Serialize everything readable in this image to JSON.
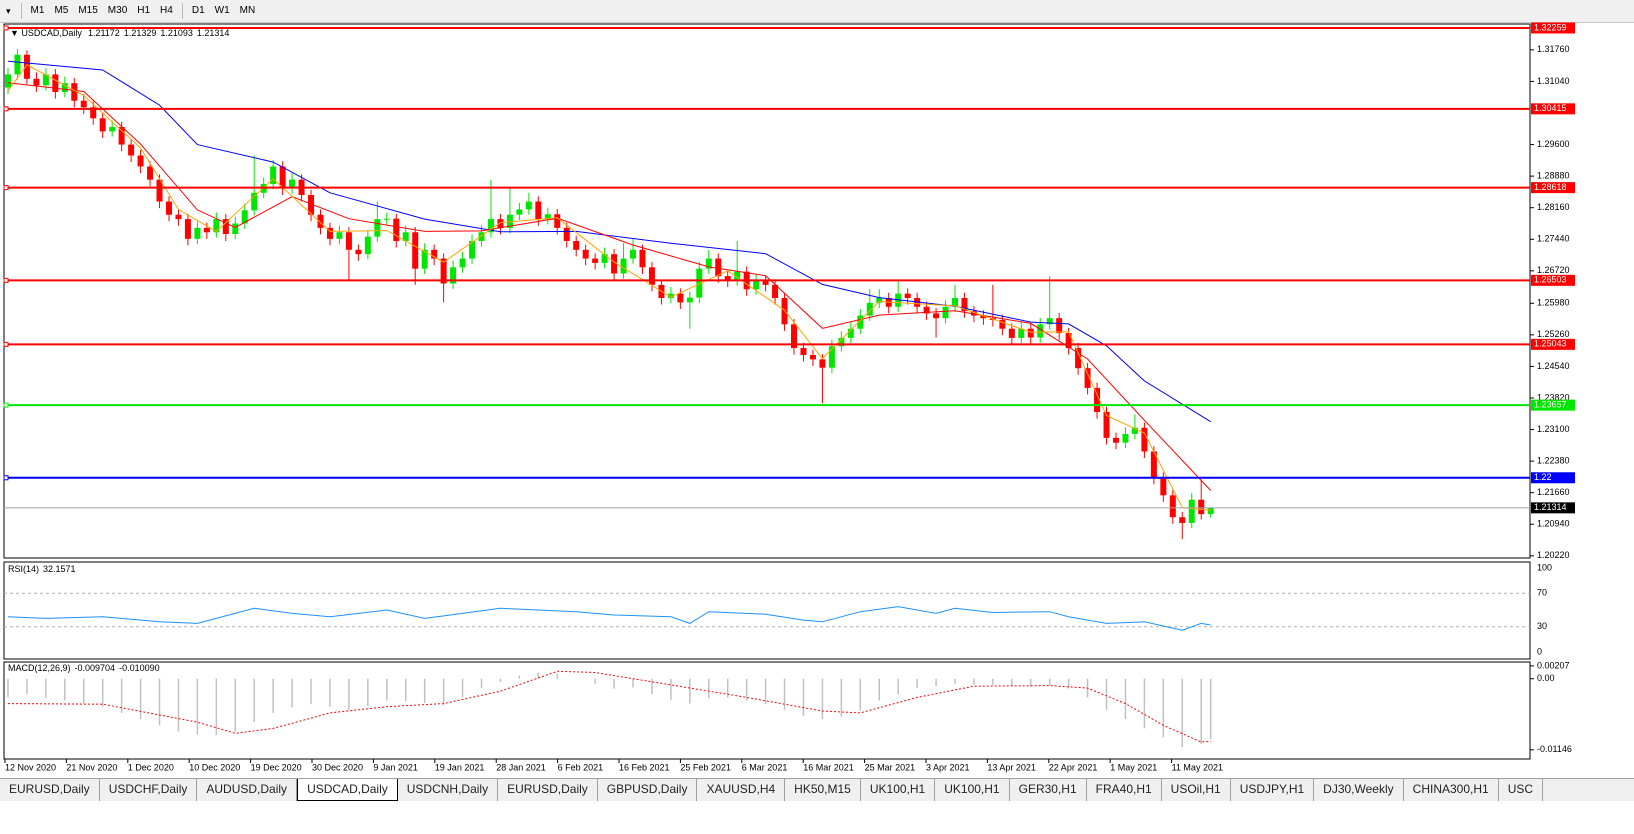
{
  "toolbar": {
    "timeframes": [
      "M1",
      "M5",
      "M15",
      "M30",
      "H1",
      "H4",
      "D1",
      "W1",
      "MN"
    ]
  },
  "chart_data": {
    "type": "candlestick",
    "title": "USDCAD,Daily",
    "bull_color": "#00e600",
    "bear_color": "#ff0000",
    "ylim": [
      1.2017,
      1.3235
    ],
    "yticks": [
      {
        "value": 1.3176,
        "label": "1.31760"
      },
      {
        "value": 1.3104,
        "label": "1.31040"
      },
      {
        "value": 1.296,
        "label": "1.29600"
      },
      {
        "value": 1.2888,
        "label": "1.28880"
      },
      {
        "value": 1.2816,
        "label": "1.28160"
      },
      {
        "value": 1.2744,
        "label": "1.27440"
      },
      {
        "value": 1.2672,
        "label": "1.26720"
      },
      {
        "value": 1.2598,
        "label": "1.25980"
      },
      {
        "value": 1.2526,
        "label": "1.25260"
      },
      {
        "value": 1.2454,
        "label": "1.24540"
      },
      {
        "value": 1.2382,
        "label": "1.23820"
      },
      {
        "value": 1.231,
        "label": "1.23100"
      },
      {
        "value": 1.2238,
        "label": "1.22380"
      },
      {
        "value": 1.2166,
        "label": "1.21660"
      },
      {
        "value": 1.2094,
        "label": "1.20940"
      },
      {
        "value": 1.2022,
        "label": "1.20220"
      }
    ],
    "x_labels": [
      "12 Nov 2020",
      "21 Nov 2020",
      "1 Dec 2020",
      "10 Dec 2020",
      "19 Dec 2020",
      "30 Dec 2020",
      "9 Jan 2021",
      "19 Jan 2021",
      "28 Jan 2021",
      "6 Feb 2021",
      "16 Feb 2021",
      "25 Feb 2021",
      "6 Mar 2021",
      "16 Mar 2021",
      "25 Mar 2021",
      "3 Apr 2021",
      "13 Apr 2021",
      "22 Apr 2021",
      "1 May 2021",
      "11 May 2021"
    ],
    "levels": [
      {
        "value": 1.32259,
        "color": "#ff0000"
      },
      {
        "value": 1.30415,
        "color": "#ff0000"
      },
      {
        "value": 1.28618,
        "color": "#ff0000"
      },
      {
        "value": 1.26503,
        "color": "#ff0000"
      },
      {
        "value": 1.25043,
        "color": "#ff0000"
      },
      {
        "value": 1.23657,
        "color": "#00e600"
      },
      {
        "value": 1.22,
        "color": "#0000ff"
      }
    ],
    "candles": [
      [
        1.309,
        1.3135,
        1.3075,
        1.312
      ],
      [
        1.312,
        1.3178,
        1.3108,
        1.3165
      ],
      [
        1.3165,
        1.3175,
        1.3098,
        1.311
      ],
      [
        1.311,
        1.3125,
        1.308,
        1.3095
      ],
      [
        1.3095,
        1.3135,
        1.3083,
        1.312
      ],
      [
        1.312,
        1.3132,
        1.3065,
        1.308
      ],
      [
        1.308,
        1.3115,
        1.3068,
        1.31
      ],
      [
        1.31,
        1.3112,
        1.3045,
        1.306
      ],
      [
        1.306,
        1.3075,
        1.303,
        1.3045
      ],
      [
        1.3045,
        1.3058,
        1.3005,
        1.302
      ],
      [
        1.302,
        1.3032,
        1.2975,
        1.299
      ],
      [
        1.299,
        1.3015,
        1.2978,
        1.3
      ],
      [
        1.3,
        1.3012,
        1.2945,
        1.296
      ],
      [
        1.296,
        1.2972,
        1.292,
        1.2935
      ],
      [
        1.2935,
        1.2948,
        1.2895,
        1.291
      ],
      [
        1.291,
        1.2922,
        1.2865,
        1.288
      ],
      [
        1.288,
        1.2892,
        1.2815,
        1.283
      ],
      [
        1.283,
        1.2842,
        1.2785,
        1.28
      ],
      [
        1.28,
        1.2812,
        1.2775,
        1.279
      ],
      [
        1.279,
        1.2802,
        1.273,
        1.2745
      ],
      [
        1.2745,
        1.2785,
        1.2733,
        1.277
      ],
      [
        1.277,
        1.2782,
        1.2745,
        1.276
      ],
      [
        1.276,
        1.2805,
        1.2748,
        1.279
      ],
      [
        1.279,
        1.2802,
        1.274,
        1.2756
      ],
      [
        1.2756,
        1.2795,
        1.2744,
        1.278
      ],
      [
        1.278,
        1.2825,
        1.2768,
        1.281
      ],
      [
        1.281,
        1.2935,
        1.2798,
        1.285
      ],
      [
        1.285,
        1.2885,
        1.2838,
        1.287
      ],
      [
        1.287,
        1.2925,
        1.2858,
        1.291
      ],
      [
        1.291,
        1.2922,
        1.2845,
        1.286
      ],
      [
        1.286,
        1.2895,
        1.2848,
        1.288
      ],
      [
        1.288,
        1.2892,
        1.283,
        1.2845
      ],
      [
        1.2845,
        1.2857,
        1.2785,
        1.28
      ],
      [
        1.28,
        1.2812,
        1.2755,
        1.277
      ],
      [
        1.277,
        1.2782,
        1.273,
        1.2745
      ],
      [
        1.2745,
        1.2775,
        1.2733,
        1.276
      ],
      [
        1.276,
        1.2772,
        1.265,
        1.272
      ],
      [
        1.272,
        1.2732,
        1.2695,
        1.271
      ],
      [
        1.271,
        1.2765,
        1.2698,
        1.275
      ],
      [
        1.275,
        1.283,
        1.2738,
        1.279
      ],
      [
        1.279,
        1.2805,
        1.2775,
        1.2791
      ],
      [
        1.2791,
        1.2802,
        1.2725,
        1.274
      ],
      [
        1.274,
        1.2775,
        1.2728,
        1.276
      ],
      [
        1.276,
        1.2772,
        1.264,
        1.2677
      ],
      [
        1.2677,
        1.2735,
        1.2665,
        1.272
      ],
      [
        1.272,
        1.2732,
        1.2685,
        1.27
      ],
      [
        1.27,
        1.2712,
        1.26,
        1.2643
      ],
      [
        1.2643,
        1.2695,
        1.2631,
        1.268
      ],
      [
        1.268,
        1.2715,
        1.2668,
        1.27
      ],
      [
        1.27,
        1.2755,
        1.2688,
        1.274
      ],
      [
        1.274,
        1.2775,
        1.2728,
        1.276
      ],
      [
        1.276,
        1.288,
        1.2748,
        1.279
      ],
      [
        1.279,
        1.2802,
        1.2755,
        1.277
      ],
      [
        1.277,
        1.286,
        1.2758,
        1.28
      ],
      [
        1.28,
        1.2827,
        1.2788,
        1.2812
      ],
      [
        1.2812,
        1.285,
        1.28,
        1.283
      ],
      [
        1.283,
        1.2842,
        1.2775,
        1.279
      ],
      [
        1.279,
        1.2816,
        1.2778,
        1.2801
      ],
      [
        1.2801,
        1.2813,
        1.2755,
        1.277
      ],
      [
        1.277,
        1.2782,
        1.2725,
        1.274
      ],
      [
        1.274,
        1.2752,
        1.2705,
        1.272
      ],
      [
        1.272,
        1.2732,
        1.2685,
        1.27
      ],
      [
        1.27,
        1.2712,
        1.2675,
        1.269
      ],
      [
        1.269,
        1.2725,
        1.2678,
        1.271
      ],
      [
        1.271,
        1.2722,
        1.2651,
        1.2666
      ],
      [
        1.2666,
        1.2735,
        1.2654,
        1.27
      ],
      [
        1.27,
        1.2745,
        1.2688,
        1.272
      ],
      [
        1.272,
        1.2732,
        1.2665,
        1.268
      ],
      [
        1.268,
        1.2692,
        1.2625,
        1.264
      ],
      [
        1.264,
        1.2652,
        1.2595,
        1.261
      ],
      [
        1.261,
        1.2635,
        1.2598,
        1.262
      ],
      [
        1.262,
        1.2632,
        1.2585,
        1.26
      ],
      [
        1.26,
        1.2625,
        1.254,
        1.2611
      ],
      [
        1.2611,
        1.2692,
        1.2598,
        1.2677
      ],
      [
        1.2677,
        1.272,
        1.2665,
        1.27
      ],
      [
        1.27,
        1.2712,
        1.2645,
        1.266
      ],
      [
        1.266,
        1.2672,
        1.2635,
        1.265
      ],
      [
        1.265,
        1.274,
        1.2638,
        1.267
      ],
      [
        1.267,
        1.2682,
        1.2615,
        1.263
      ],
      [
        1.263,
        1.2665,
        1.2618,
        1.265
      ],
      [
        1.265,
        1.2662,
        1.2625,
        1.264
      ],
      [
        1.264,
        1.2652,
        1.2595,
        1.261
      ],
      [
        1.261,
        1.2622,
        1.2535,
        1.255
      ],
      [
        1.255,
        1.2562,
        1.2481,
        1.2496
      ],
      [
        1.2496,
        1.2508,
        1.2465,
        1.248
      ],
      [
        1.248,
        1.2492,
        1.2455,
        1.247
      ],
      [
        1.247,
        1.2482,
        1.237,
        1.2451
      ],
      [
        1.2451,
        1.2515,
        1.2439,
        1.25
      ],
      [
        1.25,
        1.2534,
        1.2488,
        1.2519
      ],
      [
        1.2519,
        1.2555,
        1.2507,
        1.254
      ],
      [
        1.254,
        1.2585,
        1.2528,
        1.257
      ],
      [
        1.257,
        1.263,
        1.2558,
        1.2599
      ],
      [
        1.2599,
        1.263,
        1.2587,
        1.261
      ],
      [
        1.261,
        1.2622,
        1.2575,
        1.259
      ],
      [
        1.259,
        1.265,
        1.2578,
        1.262
      ],
      [
        1.262,
        1.2632,
        1.2595,
        1.261
      ],
      [
        1.261,
        1.2622,
        1.2575,
        1.259
      ],
      [
        1.259,
        1.2602,
        1.256,
        1.2575
      ],
      [
        1.2575,
        1.2587,
        1.252,
        1.2564
      ],
      [
        1.2564,
        1.2605,
        1.2552,
        1.259
      ],
      [
        1.259,
        1.264,
        1.2578,
        1.261
      ],
      [
        1.261,
        1.2622,
        1.2565,
        1.258
      ],
      [
        1.258,
        1.2592,
        1.2555,
        1.257
      ],
      [
        1.257,
        1.2582,
        1.2549,
        1.2564
      ],
      [
        1.2564,
        1.264,
        1.2545,
        1.256
      ],
      [
        1.256,
        1.2572,
        1.2525,
        1.254
      ],
      [
        1.254,
        1.2552,
        1.2504,
        1.2519
      ],
      [
        1.2519,
        1.2555,
        1.2507,
        1.254
      ],
      [
        1.254,
        1.2552,
        1.2505,
        1.252
      ],
      [
        1.252,
        1.2565,
        1.2508,
        1.255
      ],
      [
        1.255,
        1.266,
        1.2538,
        1.2564
      ],
      [
        1.2564,
        1.2576,
        1.2515,
        1.253
      ],
      [
        1.253,
        1.2542,
        1.2481,
        1.2496
      ],
      [
        1.2496,
        1.2508,
        1.2435,
        1.245
      ],
      [
        1.245,
        1.2462,
        1.239,
        1.2405
      ],
      [
        1.2405,
        1.2417,
        1.2335,
        1.235
      ],
      [
        1.235,
        1.2362,
        1.2276,
        1.2291
      ],
      [
        1.2291,
        1.2303,
        1.2265,
        1.228
      ],
      [
        1.228,
        1.2315,
        1.2268,
        1.23
      ],
      [
        1.23,
        1.2345,
        1.2288,
        1.2314
      ],
      [
        1.2314,
        1.2326,
        1.2245,
        1.226
      ],
      [
        1.226,
        1.2272,
        1.2185,
        1.22
      ],
      [
        1.22,
        1.2212,
        1.2145,
        1.216
      ],
      [
        1.216,
        1.2172,
        1.2095,
        1.211
      ],
      [
        1.211,
        1.2122,
        1.206,
        1.2097
      ],
      [
        1.2097,
        1.2165,
        1.2085,
        1.215
      ],
      [
        1.215,
        1.2195,
        1.2105,
        1.2117
      ],
      [
        1.21172,
        1.21329,
        1.21093,
        1.21314
      ]
    ],
    "moving_averages": [
      {
        "color": "#0000ff",
        "x": [
          0,
          10,
          16,
          20,
          28,
          34,
          44,
          52,
          60,
          70,
          80,
          86,
          92,
          100,
          108,
          112,
          116,
          120,
          127
        ],
        "values": [
          1.315,
          1.313,
          1.305,
          1.296,
          1.292,
          1.285,
          1.279,
          1.2761,
          1.2762,
          1.2735,
          1.2711,
          1.2641,
          1.2611,
          1.2591,
          1.2555,
          1.2551,
          1.2501,
          1.2421,
          1.2328
        ]
      },
      {
        "color": "#ff0000",
        "x": [
          0,
          8,
          14,
          20,
          24,
          30,
          36,
          44,
          50,
          58,
          66,
          74,
          80,
          86,
          92,
          100,
          108,
          114,
          120,
          127
        ],
        "values": [
          1.3101,
          1.3081,
          1.2961,
          1.2811,
          1.2771,
          1.2841,
          1.2791,
          1.2762,
          1.2763,
          1.2792,
          1.2731,
          1.2681,
          1.2661,
          1.2541,
          1.2571,
          1.2581,
          1.2552,
          1.2471,
          1.2331,
          1.2171
        ]
      },
      {
        "color": "#ffa500",
        "x": [
          0,
          2,
          8,
          14,
          18,
          22,
          28,
          34,
          40,
          46,
          52,
          58,
          64,
          70,
          76,
          82,
          86,
          92,
          100,
          108,
          112,
          116,
          120,
          124,
          127
        ],
        "values": [
          1.3082,
          1.3142,
          1.3072,
          1.2952,
          1.2812,
          1.2762,
          1.2882,
          1.2762,
          1.2764,
          1.2692,
          1.2782,
          1.2793,
          1.2692,
          1.2612,
          1.2672,
          1.2582,
          1.2472,
          1.2602,
          1.2592,
          1.2532,
          1.2533,
          1.2342,
          1.2302,
          1.2132,
          1.2126
        ]
      }
    ],
    "rsi": {
      "title": "RSI(14)",
      "color": "#1e90ff",
      "ylim": [
        0,
        100
      ],
      "yticks": [
        100,
        70,
        30,
        0
      ],
      "x": [
        0,
        4,
        10,
        16,
        20,
        26,
        30,
        34,
        40,
        44,
        48,
        52,
        56,
        60,
        64,
        70,
        72,
        74,
        80,
        84,
        86,
        90,
        94,
        98,
        100,
        104,
        110,
        112,
        116,
        120,
        124,
        126,
        127
      ],
      "values": [
        42,
        40,
        42,
        36,
        34,
        52,
        46,
        42,
        50,
        40,
        46,
        52,
        50,
        48,
        44,
        42,
        34,
        48,
        45,
        38,
        36,
        48,
        54,
        46,
        52,
        47,
        48,
        42,
        34,
        36,
        26,
        34,
        32.1571
      ]
    },
    "macd": {
      "title": "MACD(12,26,9)",
      "hist_color": "#c0c0c0",
      "signal_color": "#ff0000",
      "ylim": [
        -0.0131,
        0.0027
      ],
      "yticks": [
        0.00207,
        {
          "value": 0,
          "label": "0.00"
        },
        -0.01146
      ],
      "hist_x": [
        0,
        2,
        4,
        6,
        8,
        10,
        12,
        14,
        16,
        18,
        20,
        22,
        24,
        26,
        28,
        30,
        32,
        34,
        36,
        38,
        40,
        42,
        44,
        46,
        48,
        50,
        52,
        54,
        56,
        58,
        60,
        62,
        64,
        66,
        68,
        70,
        72,
        74,
        76,
        78,
        80,
        82,
        84,
        86,
        88,
        90,
        92,
        94,
        96,
        98,
        100,
        102,
        104,
        106,
        108,
        110,
        112,
        114,
        116,
        118,
        120,
        122,
        124,
        126,
        127
      ],
      "hist": [
        -0.003,
        -0.0025,
        -0.0031,
        -0.0035,
        -0.004,
        -0.0045,
        -0.0055,
        -0.0065,
        -0.0075,
        -0.0085,
        -0.009,
        -0.0091,
        -0.0085,
        -0.007,
        -0.0055,
        -0.0046,
        -0.0041,
        -0.0045,
        -0.005,
        -0.0044,
        -0.0035,
        -0.0036,
        -0.0039,
        -0.0042,
        -0.003,
        -0.0015,
        -0.0005,
        0.0005,
        0.001,
        0.0008,
        0,
        -0.0008,
        -0.0016,
        -0.0014,
        -0.0025,
        -0.0034,
        -0.004,
        -0.0031,
        -0.003,
        -0.0035,
        -0.0041,
        -0.005,
        -0.006,
        -0.0065,
        -0.0061,
        -0.0051,
        -0.0035,
        -0.0025,
        -0.0015,
        -0.0012,
        -0.0008,
        -0.0009,
        -0.001,
        -0.0012,
        -0.0013,
        -0.0011,
        -0.0016,
        -0.003,
        -0.005,
        -0.0065,
        -0.008,
        -0.0095,
        -0.011,
        -0.0105,
        -0.009704
      ],
      "signal_x": [
        0,
        10,
        20,
        24,
        28,
        34,
        40,
        46,
        52,
        58,
        62,
        70,
        78,
        86,
        90,
        96,
        102,
        110,
        114,
        118,
        122,
        126,
        127
      ],
      "signal": [
        -0.004,
        -0.0041,
        -0.007,
        -0.0088,
        -0.008,
        -0.0055,
        -0.0045,
        -0.004,
        -0.002,
        0.0012,
        0.001,
        -0.001,
        -0.003,
        -0.0052,
        -0.0055,
        -0.003,
        -0.0012,
        -0.0011,
        -0.0015,
        -0.004,
        -0.0075,
        -0.0102,
        -0.01009
      ],
      "signal_value_labels": [
        null,
        null,
        null,
        null,
        null,
        null,
        null,
        null,
        null,
        null,
        null,
        null,
        null,
        null,
        null,
        null,
        null,
        null,
        null,
        null,
        null,
        null,
        "-0.010090"
      ]
    }
  },
  "tabs": [
    "EURUSD,Daily",
    "USDCHF,Daily",
    "AUDUSD,Daily",
    "USDCAD,Daily",
    "USDCNH,Daily",
    "EURUSD,Daily",
    "GBPUSD,Daily",
    "XAUUSD,H4",
    "HK50,M15",
    "UK100,H1",
    "UK100,H1",
    "GER30,H1",
    "FRA40,H1",
    "USOil,H1",
    "USDJPY,H1",
    "DJ30,Weekly",
    "CHINA300,H1",
    "USC"
  ],
  "active_tab": 3
}
